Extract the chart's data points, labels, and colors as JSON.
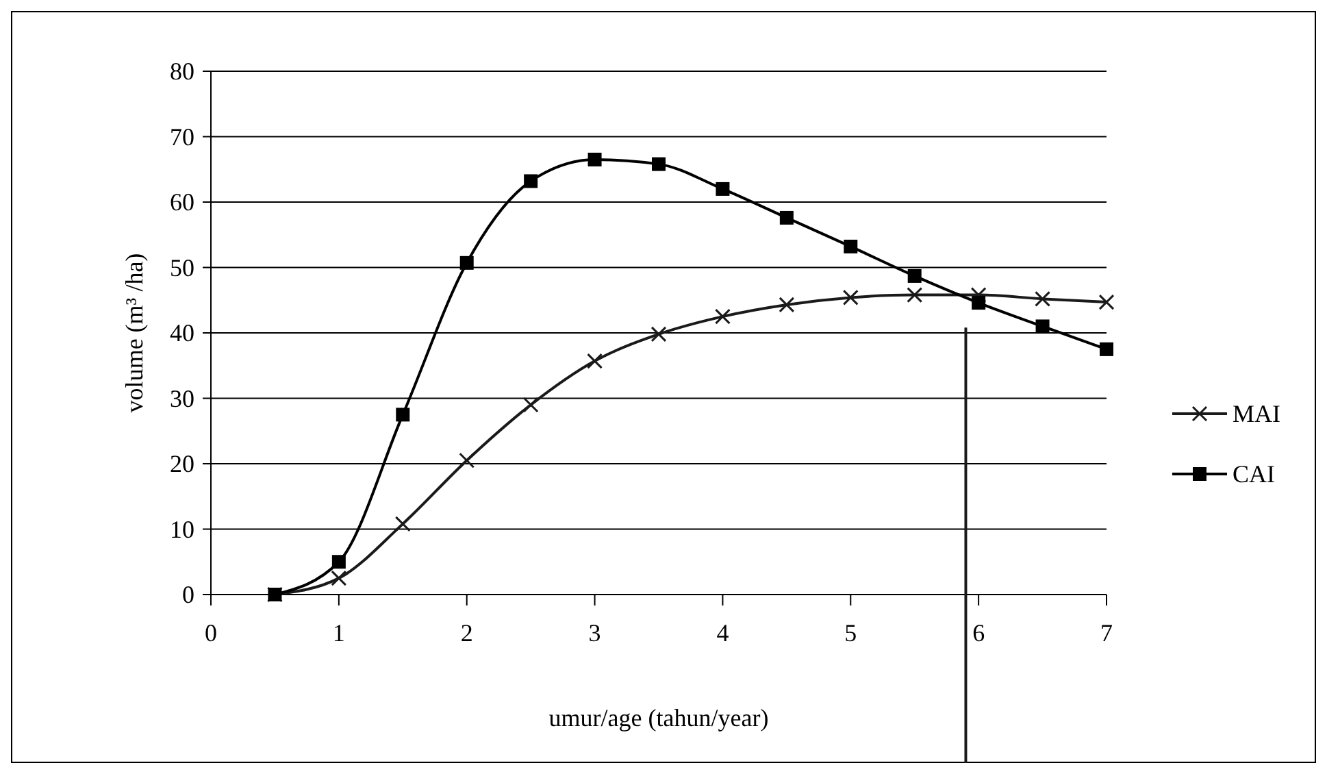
{
  "chart_data": {
    "type": "line",
    "xlabel": "umur/age (tahun/year)",
    "ylabel": "volume (m³ /ha)",
    "xlim": [
      0,
      7
    ],
    "xticks": [
      0,
      1,
      2,
      3,
      4,
      5,
      6,
      7
    ],
    "ylim": [
      0,
      80
    ],
    "yticks": [
      0,
      10,
      20,
      30,
      40,
      50,
      60,
      70,
      80
    ],
    "grid": "y",
    "legend": "right",
    "series": [
      {
        "name": "MAI",
        "color": "#1a1a1a",
        "marker": "cross",
        "x": [
          0.5,
          1,
          1.5,
          2,
          2.5,
          3,
          3.5,
          4,
          4.5,
          5,
          5.5,
          6,
          6.5,
          7
        ],
        "values": [
          0,
          2.5,
          10.8,
          20.5,
          29,
          35.7,
          39.8,
          42.5,
          44.3,
          45.4,
          45.8,
          45.8,
          45.2,
          44.7
        ]
      },
      {
        "name": "CAI",
        "color": "#000000",
        "marker": "square",
        "x": [
          0.5,
          1,
          1.5,
          2,
          2.5,
          3,
          3.5,
          4,
          4.5,
          5,
          5.5,
          6,
          6.5,
          7
        ],
        "values": [
          0,
          5,
          27.5,
          50.7,
          63.2,
          66.5,
          65.8,
          62,
          57.6,
          53.2,
          48.7,
          44.6,
          41,
          37.5
        ]
      }
    ],
    "ref_lines": [
      {
        "axis": "x",
        "value": 5.9,
        "color": "#1a1a1a"
      }
    ]
  }
}
